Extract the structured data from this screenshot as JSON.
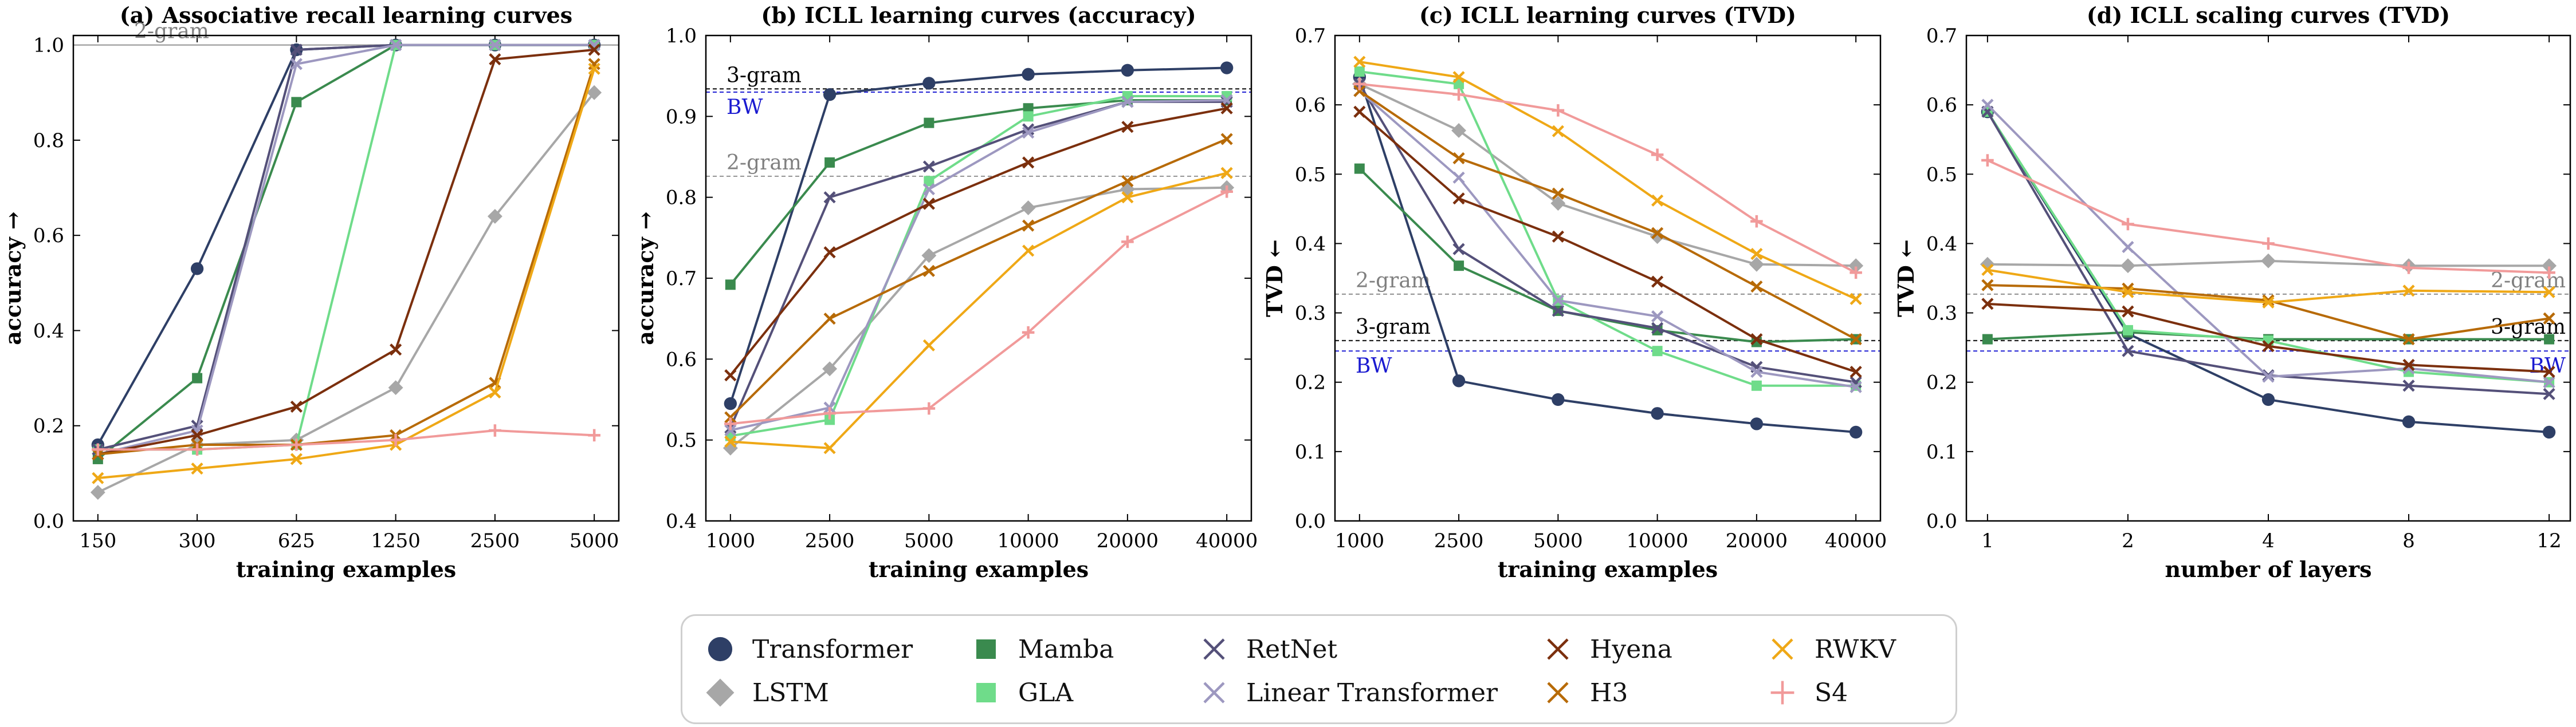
{
  "colors": {
    "Transformer": "#2e3f66",
    "LSTM": "#a7a7a7",
    "Mamba": "#3a8a4e",
    "GLA": "#6fdc8a",
    "RetNet": "#545079",
    "Linear Transformer": "#9d98c0",
    "Hyena": "#7b2f0d",
    "H3": "#b76a06",
    "RWKV": "#efa816",
    "S4": "#f19a9a"
  },
  "markers": {
    "Transformer": "circle",
    "LSTM": "diamond",
    "Mamba": "square",
    "GLA": "square",
    "RetNet": "x",
    "Linear Transformer": "x",
    "Hyena": "x",
    "H3": "x",
    "RWKV": "x",
    "S4": "plus"
  },
  "legend": [
    {
      "name": "Transformer"
    },
    {
      "name": "LSTM"
    },
    {
      "name": "Mamba"
    },
    {
      "name": "GLA"
    },
    {
      "name": "RetNet"
    },
    {
      "name": "Linear Transformer"
    },
    {
      "name": "Hyena"
    },
    {
      "name": "H3"
    },
    {
      "name": "RWKV"
    },
    {
      "name": "S4"
    }
  ],
  "chart_data": [
    {
      "type": "line",
      "title": "(a) Associative recall learning curves",
      "xlabel": "training examples",
      "ylabel": "accuracy →",
      "categories": [
        "150",
        "300",
        "625",
        "1250",
        "2500",
        "5000"
      ],
      "ylim": [
        0.0,
        1.02
      ],
      "yticks": [
        0.0,
        0.2,
        0.4,
        0.6,
        0.8,
        1.0
      ],
      "reference_lines": [
        {
          "label": "2-gram",
          "value": 1.0,
          "color": "#a7a7a7",
          "style": "solid",
          "label_color": "#808080"
        }
      ],
      "series": [
        {
          "name": "Transformer",
          "values": [
            0.16,
            0.53,
            0.99,
            1.0,
            1.0,
            1.0
          ]
        },
        {
          "name": "LSTM",
          "values": [
            0.06,
            0.16,
            0.17,
            0.28,
            0.64,
            0.9
          ]
        },
        {
          "name": "Mamba",
          "values": [
            0.13,
            0.3,
            0.88,
            1.0,
            1.0,
            1.0
          ]
        },
        {
          "name": "GLA",
          "values": [
            0.15,
            0.15,
            0.16,
            1.0,
            1.0,
            1.0
          ]
        },
        {
          "name": "RetNet",
          "values": [
            0.15,
            0.2,
            0.99,
            1.0,
            1.0,
            1.0
          ]
        },
        {
          "name": "Linear Transformer",
          "values": [
            0.14,
            0.19,
            0.96,
            1.0,
            1.0,
            1.0
          ]
        },
        {
          "name": "Hyena",
          "values": [
            0.14,
            0.18,
            0.24,
            0.36,
            0.97,
            0.99
          ]
        },
        {
          "name": "H3",
          "values": [
            0.14,
            0.16,
            0.16,
            0.18,
            0.29,
            0.96
          ]
        },
        {
          "name": "RWKV",
          "values": [
            0.09,
            0.11,
            0.13,
            0.16,
            0.27,
            0.95
          ]
        },
        {
          "name": "S4",
          "values": [
            0.15,
            0.15,
            0.16,
            0.17,
            0.19,
            0.18
          ]
        }
      ]
    },
    {
      "type": "line",
      "title": "(b) ICLL learning curves (accuracy)",
      "xlabel": "training examples",
      "ylabel": "accuracy →",
      "categories": [
        "1000",
        "2500",
        "5000",
        "10000",
        "20000",
        "40000"
      ],
      "ylim": [
        0.4,
        1.0
      ],
      "yticks": [
        0.4,
        0.5,
        0.6,
        0.7,
        0.8,
        0.9,
        1.0
      ],
      "reference_lines": [
        {
          "label": "3-gram",
          "value": 0.934,
          "color": "#222222",
          "style": "dashed",
          "label_color": "#000000"
        },
        {
          "label": "BW",
          "value": 0.93,
          "color": "#2b2bd6",
          "style": "dashed",
          "label_color": "#1a1ad0",
          "label_below": true
        },
        {
          "label": "2-gram",
          "value": 0.826,
          "color": "#999999",
          "style": "dashed",
          "label_color": "#808080"
        }
      ],
      "series": [
        {
          "name": "Transformer",
          "values": [
            0.545,
            0.927,
            0.941,
            0.952,
            0.957,
            0.96
          ]
        },
        {
          "name": "LSTM",
          "values": [
            0.49,
            0.588,
            0.728,
            0.787,
            0.81,
            0.812
          ]
        },
        {
          "name": "Mamba",
          "values": [
            0.692,
            0.843,
            0.892,
            0.91,
            0.92,
            0.92
          ]
        },
        {
          "name": "GLA",
          "values": [
            0.505,
            0.525,
            0.82,
            0.9,
            0.925,
            0.925
          ]
        },
        {
          "name": "RetNet",
          "values": [
            0.515,
            0.8,
            0.838,
            0.884,
            0.918,
            0.918
          ]
        },
        {
          "name": "Linear Transformer",
          "values": [
            0.512,
            0.54,
            0.81,
            0.88,
            0.918,
            0.92
          ]
        },
        {
          "name": "Hyena",
          "values": [
            0.58,
            0.732,
            0.792,
            0.843,
            0.887,
            0.91
          ]
        },
        {
          "name": "H3",
          "values": [
            0.528,
            0.65,
            0.709,
            0.765,
            0.82,
            0.872
          ]
        },
        {
          "name": "RWKV",
          "values": [
            0.498,
            0.49,
            0.617,
            0.734,
            0.8,
            0.83
          ]
        },
        {
          "name": "S4",
          "values": [
            0.52,
            0.533,
            0.539,
            0.633,
            0.745,
            0.807
          ]
        }
      ]
    },
    {
      "type": "line",
      "title": "(c) ICLL learning curves (TVD)",
      "xlabel": "training examples",
      "ylabel": "TVD ←",
      "categories": [
        "1000",
        "2500",
        "5000",
        "10000",
        "20000",
        "40000"
      ],
      "ylim": [
        0.0,
        0.7
      ],
      "yticks": [
        0.0,
        0.1,
        0.2,
        0.3,
        0.4,
        0.5,
        0.6,
        0.7
      ],
      "reference_lines": [
        {
          "label": "2-gram",
          "value": 0.327,
          "color": "#999999",
          "style": "dashed",
          "label_color": "#808080"
        },
        {
          "label": "3-gram",
          "value": 0.26,
          "color": "#222222",
          "style": "dashed",
          "label_color": "#000000"
        },
        {
          "label": "BW",
          "value": 0.245,
          "color": "#2b2bd6",
          "style": "dashed",
          "label_color": "#1a1ad0",
          "label_below": true
        }
      ],
      "series": [
        {
          "name": "Transformer",
          "values": [
            0.64,
            0.202,
            0.175,
            0.155,
            0.14,
            0.128
          ]
        },
        {
          "name": "LSTM",
          "values": [
            0.63,
            0.563,
            0.458,
            0.41,
            0.37,
            0.368
          ]
        },
        {
          "name": "Mamba",
          "values": [
            0.508,
            0.368,
            0.303,
            0.275,
            0.258,
            0.262
          ]
        },
        {
          "name": "GLA",
          "values": [
            0.648,
            0.63,
            0.318,
            0.245,
            0.195,
            0.195
          ]
        },
        {
          "name": "RetNet",
          "values": [
            0.63,
            0.392,
            0.303,
            0.278,
            0.222,
            0.2
          ]
        },
        {
          "name": "Linear Transformer",
          "values": [
            0.62,
            0.495,
            0.318,
            0.295,
            0.215,
            0.193
          ]
        },
        {
          "name": "Hyena",
          "values": [
            0.59,
            0.465,
            0.41,
            0.345,
            0.262,
            0.215
          ]
        },
        {
          "name": "H3",
          "values": [
            0.62,
            0.523,
            0.472,
            0.415,
            0.338,
            0.262
          ]
        },
        {
          "name": "RWKV",
          "values": [
            0.662,
            0.64,
            0.562,
            0.462,
            0.385,
            0.32
          ]
        },
        {
          "name": "S4",
          "values": [
            0.63,
            0.615,
            0.592,
            0.528,
            0.432,
            0.358
          ]
        }
      ]
    },
    {
      "type": "line",
      "title": "(d) ICLL scaling curves (TVD)",
      "xlabel": "number of layers",
      "ylabel": "TVD ←",
      "categories": [
        "1",
        "2",
        "4",
        "8",
        "12"
      ],
      "ylim": [
        0.0,
        0.7
      ],
      "yticks": [
        0.0,
        0.1,
        0.2,
        0.3,
        0.4,
        0.5,
        0.6,
        0.7
      ],
      "reference_lines": [
        {
          "label": "2-gram",
          "value": 0.327,
          "color": "#999999",
          "style": "dashed",
          "label_color": "#808080",
          "label_side": "right"
        },
        {
          "label": "3-gram",
          "value": 0.26,
          "color": "#222222",
          "style": "dashed",
          "label_color": "#000000",
          "label_side": "right"
        },
        {
          "label": "BW",
          "value": 0.245,
          "color": "#2b2bd6",
          "style": "dashed",
          "label_color": "#1a1ad0",
          "label_side": "right",
          "label_below": true
        }
      ],
      "series": [
        {
          "name": "Transformer",
          "values": [
            0.59,
            0.27,
            0.175,
            0.143,
            0.128
          ]
        },
        {
          "name": "LSTM",
          "values": [
            0.37,
            0.368,
            0.375,
            0.368,
            0.368
          ]
        },
        {
          "name": "Mamba",
          "values": [
            0.262,
            0.272,
            0.262,
            0.262,
            0.262
          ]
        },
        {
          "name": "GLA",
          "values": [
            0.59,
            0.275,
            0.26,
            0.215,
            0.2
          ]
        },
        {
          "name": "RetNet",
          "values": [
            0.59,
            0.245,
            0.21,
            0.195,
            0.183
          ]
        },
        {
          "name": "Linear Transformer",
          "values": [
            0.6,
            0.395,
            0.208,
            0.22,
            0.2
          ]
        },
        {
          "name": "Hyena",
          "values": [
            0.313,
            0.302,
            0.252,
            0.225,
            0.215
          ]
        },
        {
          "name": "H3",
          "values": [
            0.34,
            0.335,
            0.318,
            0.262,
            0.292
          ]
        },
        {
          "name": "RWKV",
          "values": [
            0.362,
            0.33,
            0.315,
            0.332,
            0.33
          ]
        },
        {
          "name": "S4",
          "values": [
            0.52,
            0.428,
            0.4,
            0.365,
            0.358
          ]
        }
      ]
    }
  ]
}
